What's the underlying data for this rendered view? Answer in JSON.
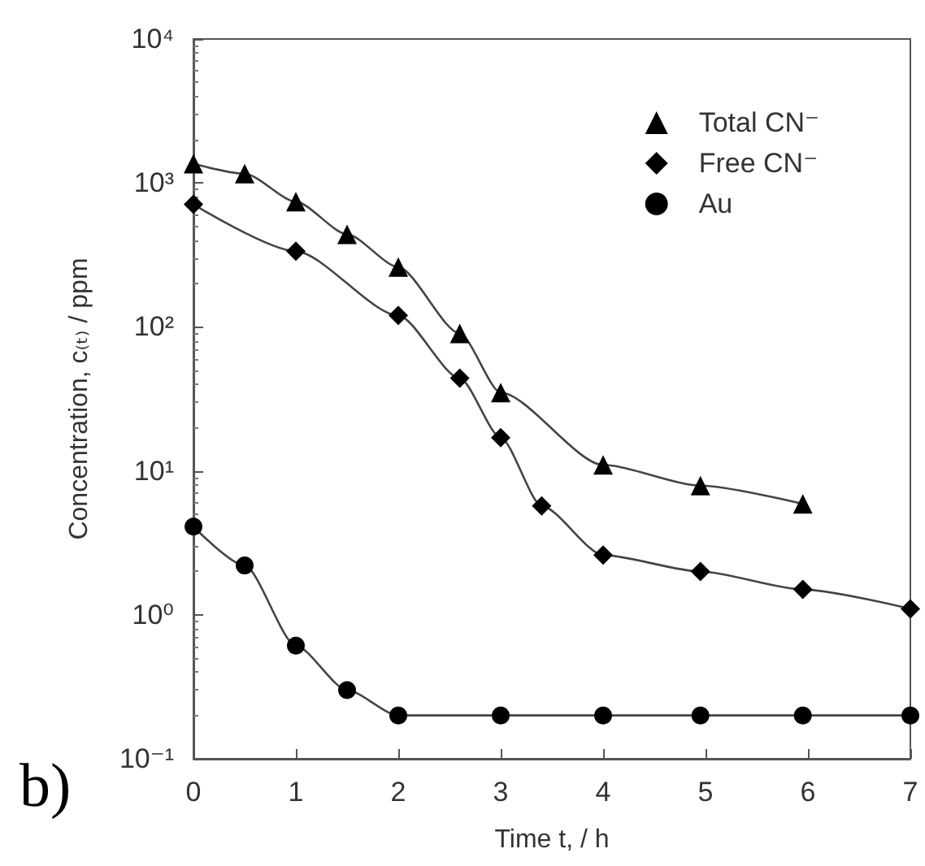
{
  "chart_data": {
    "type": "line",
    "xlabel": "Time t, / h",
    "ylabel": "Concentration, c₍ₜ₎ / ppm",
    "series": [
      {
        "name": "Total CN⁻",
        "color": "#000000",
        "marker": "triangle",
        "x": [
          0,
          0.5,
          1,
          1.5,
          2,
          2.6,
          3,
          4,
          4.95,
          5.95
        ],
        "values": [
          1360,
          1160,
          740,
          440,
          260,
          90,
          35,
          11,
          7.9,
          5.9
        ]
      },
      {
        "name": "Free CN⁻",
        "color": "#000000",
        "marker": "diamond",
        "x": [
          0,
          1,
          2,
          2.6,
          3,
          3.4,
          4,
          4.95,
          5.95,
          7
        ],
        "values": [
          710,
          335,
          120,
          44,
          17,
          5.7,
          2.6,
          2.0,
          1.5,
          1.1
        ]
      },
      {
        "name": "Au",
        "color": "#000000",
        "marker": "circle",
        "x": [
          0,
          0.5,
          1,
          1.5,
          2,
          3,
          4,
          4.95,
          5.95,
          7
        ],
        "values": [
          4.1,
          2.2,
          0.61,
          0.3,
          0.2,
          0.2,
          0.2,
          0.2,
          0.2,
          0.2
        ]
      }
    ],
    "xlim": [
      0,
      7
    ],
    "xticks": [
      0,
      1,
      2,
      3,
      4,
      5,
      6,
      7
    ],
    "ylim": [
      0.1,
      10000
    ],
    "yticks": [
      {
        "value": 0.1,
        "label": "10⁻¹"
      },
      {
        "value": 1,
        "label": "10⁰"
      },
      {
        "value": 10,
        "label": "10¹"
      },
      {
        "value": 100,
        "label": "10²"
      },
      {
        "value": 1000,
        "label": "10³"
      },
      {
        "value": 10000,
        "label": "10⁴"
      }
    ],
    "log": "y",
    "grid": false,
    "legend": "top right",
    "line_style": "solid",
    "annotations": [
      "b)"
    ]
  }
}
